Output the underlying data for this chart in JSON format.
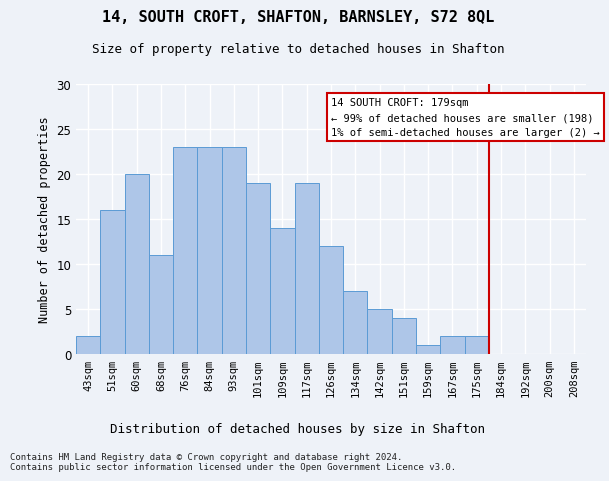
{
  "title": "14, SOUTH CROFT, SHAFTON, BARNSLEY, S72 8QL",
  "subtitle": "Size of property relative to detached houses in Shafton",
  "xlabel": "Distribution of detached houses by size in Shafton",
  "ylabel": "Number of detached properties",
  "bar_labels": [
    "43sqm",
    "51sqm",
    "60sqm",
    "68sqm",
    "76sqm",
    "84sqm",
    "93sqm",
    "101sqm",
    "109sqm",
    "117sqm",
    "126sqm",
    "134sqm",
    "142sqm",
    "151sqm",
    "159sqm",
    "167sqm",
    "175sqm",
    "184sqm",
    "192sqm",
    "200sqm",
    "208sqm"
  ],
  "bar_heights": [
    2,
    16,
    20,
    11,
    23,
    23,
    23,
    19,
    14,
    19,
    12,
    7,
    5,
    4,
    1,
    2,
    2,
    0,
    0,
    0,
    0
  ],
  "bar_color": "#aec6e8",
  "bar_edge_color": "#5b9bd5",
  "annotation_text": "14 SOUTH CROFT: 179sqm\n← 99% of detached houses are smaller (198)\n1% of semi-detached houses are larger (2) →",
  "annotation_box_color": "#ffffff",
  "annotation_box_edge_color": "#cc0000",
  "vline_x_index": 16.5,
  "vline_color": "#cc0000",
  "ylim": [
    0,
    30
  ],
  "yticks": [
    0,
    5,
    10,
    15,
    20,
    25,
    30
  ],
  "footer": "Contains HM Land Registry data © Crown copyright and database right 2024.\nContains public sector information licensed under the Open Government Licence v3.0.",
  "background_color": "#eef2f8"
}
